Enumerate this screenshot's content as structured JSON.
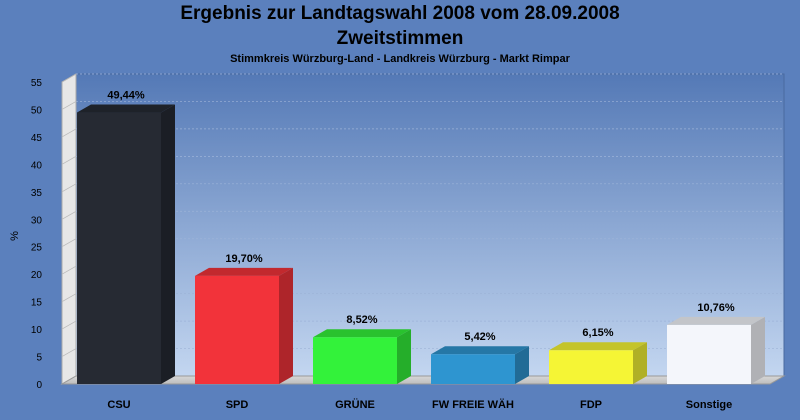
{
  "chart_data": {
    "type": "bar",
    "title": "Ergebnis zur Landtagswahl 2008 vom 28.09.2008",
    "subtitle": "Zweitstimmen",
    "subsubtitle": "Stimmkreis Würzburg-Land - Landkreis Würzburg - Markt Rimpar",
    "ylabel": "%",
    "xlabel": "",
    "ylim": [
      0,
      55
    ],
    "yticks": [
      0,
      5,
      10,
      15,
      20,
      25,
      30,
      35,
      40,
      45,
      50,
      55
    ],
    "grid": true,
    "categories": [
      "CSU",
      "SPD",
      "GRÜNE",
      "FW FREIE WÄH",
      "FDP",
      "Sonstige"
    ],
    "values": [
      49.44,
      19.7,
      8.52,
      5.42,
      6.15,
      10.76
    ],
    "value_labels": [
      "49,44%",
      "19,70%",
      "8,52%",
      "5,42%",
      "6,15%",
      "10,76%"
    ],
    "colors": [
      "#262a33",
      "#f2333a",
      "#33f23a",
      "#2e95d0",
      "#f5f535",
      "#f4f6fb"
    ]
  }
}
